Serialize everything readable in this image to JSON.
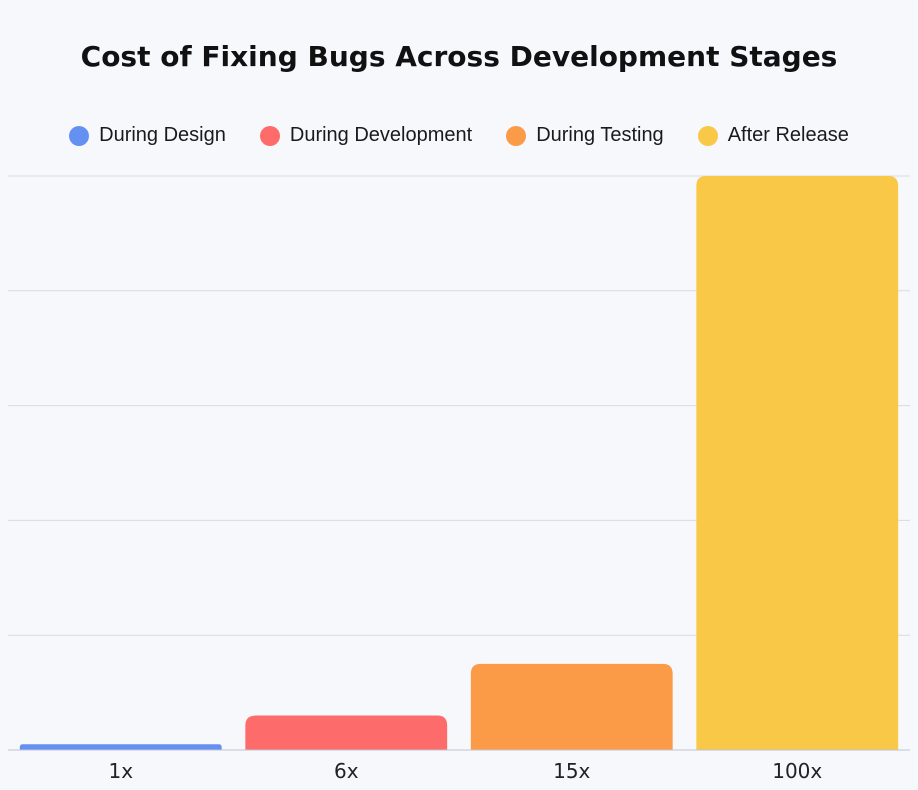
{
  "chart_data": {
    "type": "bar",
    "title": "Cost of Fixing Bugs Across Development Stages",
    "categories": [
      "1x",
      "6x",
      "15x",
      "100x"
    ],
    "values": [
      1,
      6,
      15,
      100
    ],
    "series_names": [
      "During Design",
      "During Development",
      "During Testing",
      "After Release"
    ],
    "colors": [
      "#6490f2",
      "#fe6b6b",
      "#fb9a47",
      "#f9c846"
    ],
    "ylim": [
      0,
      100
    ],
    "grid": true,
    "legend_position": "top-center"
  }
}
